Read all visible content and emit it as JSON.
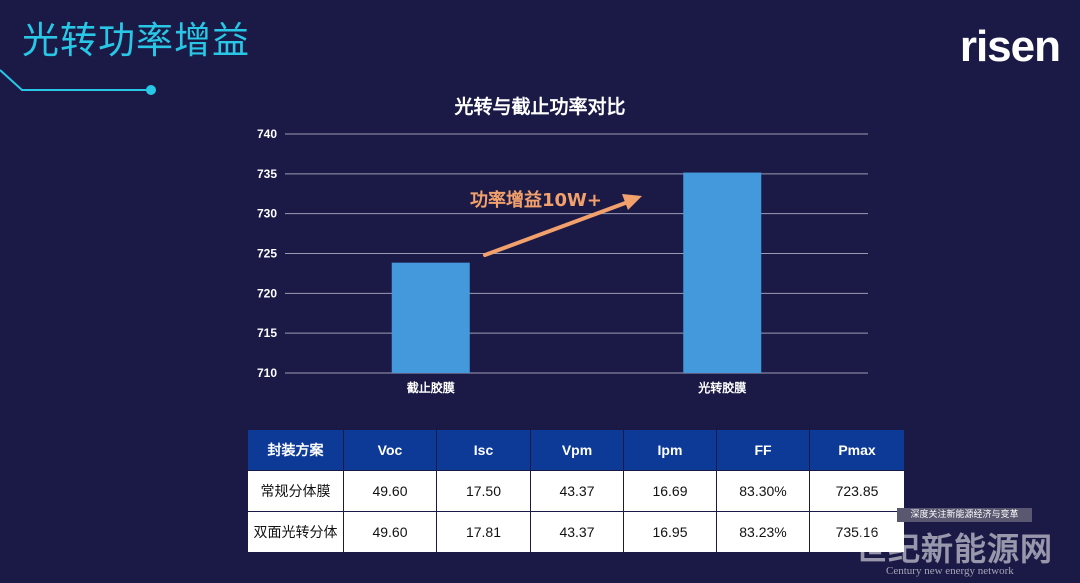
{
  "slide": {
    "title": "光转功率增益",
    "logo": "risen"
  },
  "chart_data": {
    "type": "bar",
    "title": "光转与截止功率对比",
    "categories": [
      "截止胶膜",
      "光转胶膜"
    ],
    "values": [
      723.85,
      735.16
    ],
    "ylim": [
      710,
      740
    ],
    "yticks": [
      710,
      715,
      720,
      725,
      730,
      735,
      740
    ],
    "grid": true,
    "bar_color": "#4399dc",
    "annotation": "功率增益10W+",
    "annotation_color": "#f2a06c",
    "xlabel": "",
    "ylabel": ""
  },
  "table": {
    "headers": [
      "封装方案",
      "Voc",
      "Isc",
      "Vpm",
      "Ipm",
      "FF",
      "Pmax"
    ],
    "rows": [
      [
        "常规分体膜",
        "49.60",
        "17.50",
        "43.37",
        "16.69",
        "83.30%",
        "723.85"
      ],
      [
        "双面光转分体",
        "49.60",
        "17.81",
        "43.37",
        "16.95",
        "83.23%",
        "735.16"
      ]
    ]
  },
  "watermark": {
    "tagline": "深度关注新能源经济与变革",
    "name": "世纪新能源网",
    "english": "Century new energy network"
  }
}
